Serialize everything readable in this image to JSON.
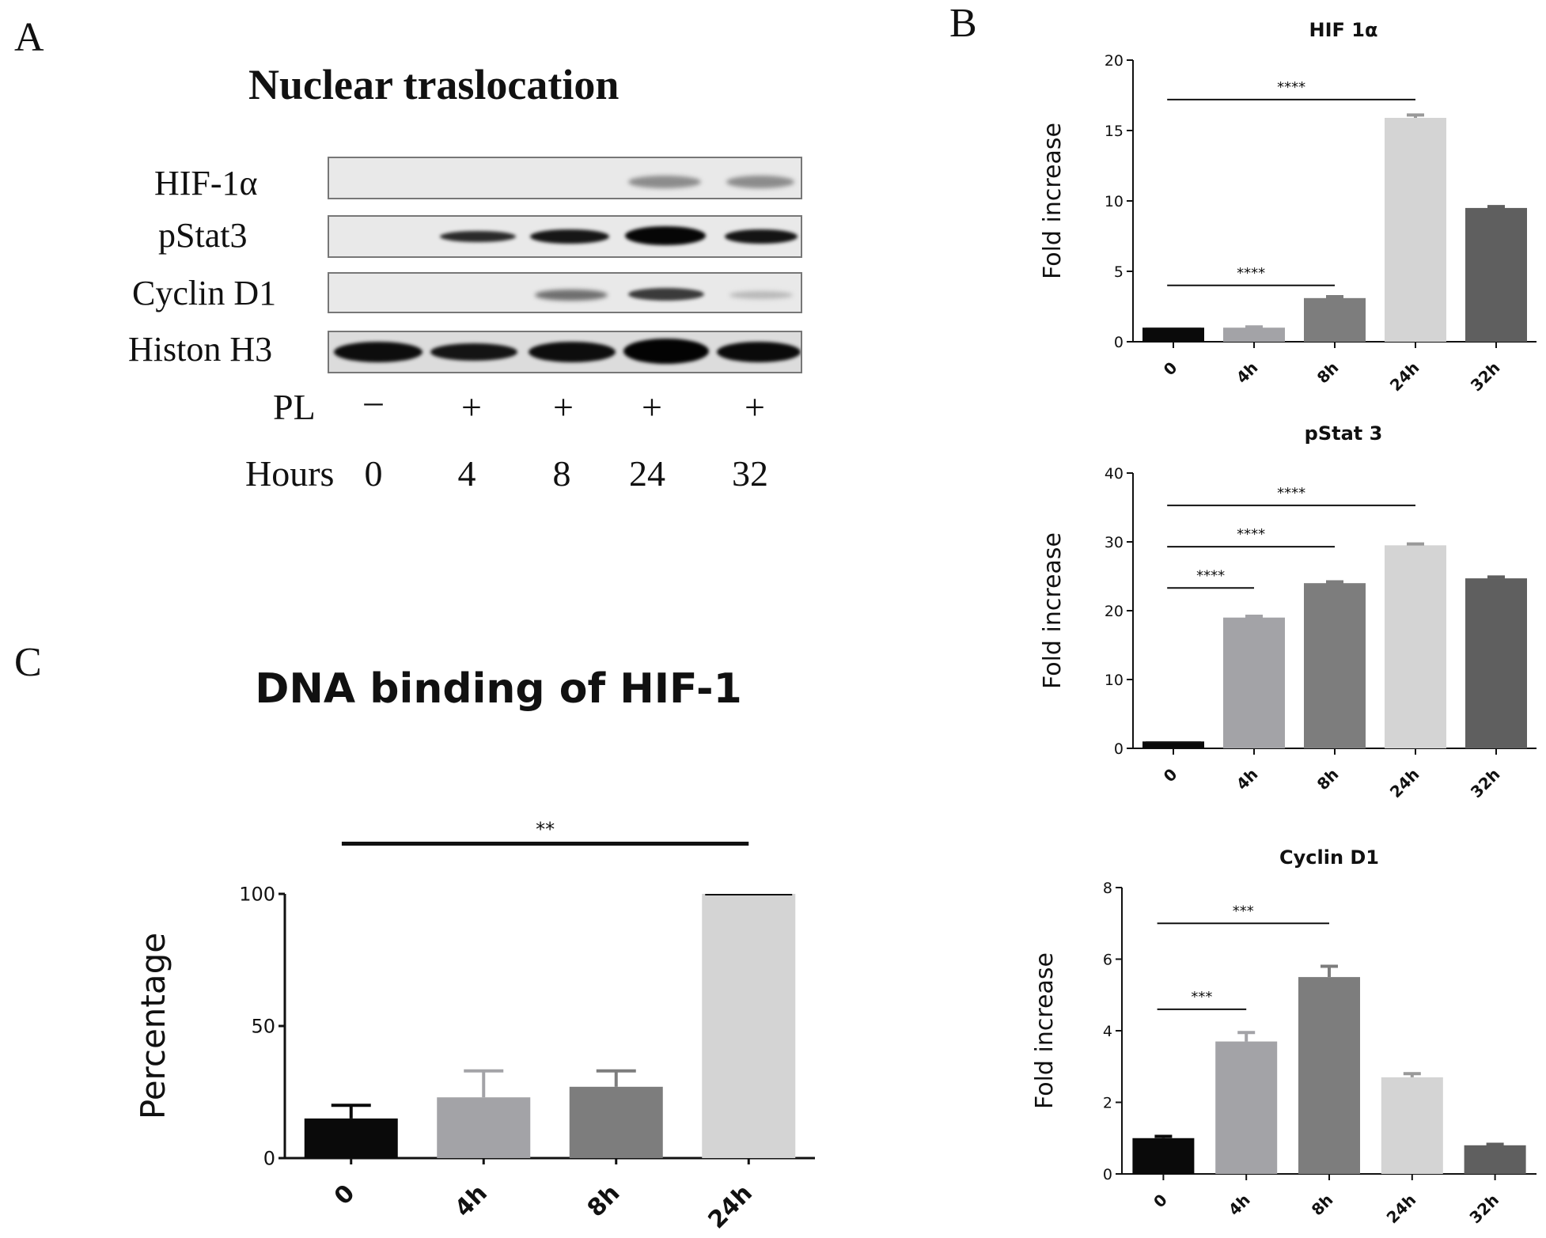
{
  "panel_a": {
    "letter": "A",
    "title": "Nuclear traslocation",
    "row_labels": [
      "HIF-1α",
      "pStat3",
      "Cyclin D1",
      "Histon H3"
    ],
    "pl_label": "PL",
    "pl_values": [
      "–",
      "+",
      "+",
      "+",
      "+"
    ],
    "hours_label": "Hours",
    "hours_values": [
      "0",
      "4",
      "8",
      "24",
      "32"
    ]
  },
  "panel_b": {
    "letter": "B"
  },
  "panel_c": {
    "letter": "C"
  },
  "colors": {
    "black": "#0a0a0a",
    "gray_light": "#a3a3a7",
    "gray_mid": "#7d7d7d",
    "very_light": "#d4d4d4",
    "dark": "#5f5f5f"
  },
  "chart_data": [
    {
      "id": "hif",
      "type": "bar",
      "title": "HIF 1α",
      "xlabel": "",
      "ylabel": "Fold increase",
      "categories": [
        "0",
        "4h",
        "8h",
        "24h",
        "32h"
      ],
      "values": [
        1.0,
        1.0,
        3.1,
        15.9,
        9.5
      ],
      "errors": [
        0.0,
        0.05,
        0.1,
        0.2,
        0.1
      ],
      "bar_colors": [
        "#0a0a0a",
        "#a3a3a7",
        "#7d7d7d",
        "#d4d4d4",
        "#5f5f5f"
      ],
      "ylim": [
        0,
        20
      ],
      "yticks": [
        0,
        5,
        10,
        15,
        20
      ],
      "significance": [
        {
          "from": 0,
          "to": 3,
          "y": 17.2,
          "label": "****"
        },
        {
          "from": 0,
          "to": 2,
          "y": 4.0,
          "label": "****"
        }
      ]
    },
    {
      "id": "pstat",
      "type": "bar",
      "title": "pStat 3",
      "xlabel": "",
      "ylabel": "Fold increase",
      "categories": [
        "0",
        "4h",
        "8h",
        "24h",
        "32h"
      ],
      "values": [
        1.0,
        19.0,
        24.0,
        29.5,
        24.7
      ],
      "errors": [
        0.0,
        0.2,
        0.2,
        0.2,
        0.2
      ],
      "bar_colors": [
        "#0a0a0a",
        "#a3a3a7",
        "#7d7d7d",
        "#d4d4d4",
        "#5f5f5f"
      ],
      "ylim": [
        0,
        40
      ],
      "yticks": [
        0,
        10,
        20,
        30,
        40
      ],
      "significance": [
        {
          "from": 0,
          "to": 3,
          "y": 35.3,
          "label": "****"
        },
        {
          "from": 0,
          "to": 2,
          "y": 29.3,
          "label": "****"
        },
        {
          "from": 0,
          "to": 1,
          "y": 23.3,
          "label": "****"
        }
      ]
    },
    {
      "id": "cyclin",
      "type": "bar",
      "title": "Cyclin D1",
      "xlabel": "",
      "ylabel": "Fold increase",
      "categories": [
        "0",
        "4h",
        "8h",
        "24h",
        "32h"
      ],
      "values": [
        1.0,
        3.7,
        5.5,
        2.7,
        0.8
      ],
      "errors": [
        0.05,
        0.25,
        0.3,
        0.1,
        0.03
      ],
      "bar_colors": [
        "#0a0a0a",
        "#a3a3a7",
        "#7d7d7d",
        "#d4d4d4",
        "#5f5f5f"
      ],
      "ylim": [
        0,
        8
      ],
      "yticks": [
        0,
        2,
        4,
        6,
        8
      ],
      "significance": [
        {
          "from": 0,
          "to": 2,
          "y": 7.0,
          "label": "***"
        },
        {
          "from": 0,
          "to": 1,
          "y": 4.6,
          "label": "***"
        }
      ]
    },
    {
      "id": "dna",
      "type": "bar",
      "title": "DNA binding of HIF-1",
      "xlabel": "",
      "ylabel": "Percentage",
      "categories": [
        "0",
        "4h",
        "8h",
        "24h"
      ],
      "values": [
        15,
        23,
        27,
        100
      ],
      "errors": [
        5,
        10,
        6,
        0
      ],
      "bar_colors": [
        "#0a0a0a",
        "#a3a3a7",
        "#7d7d7d",
        "#d4d4d4"
      ],
      "ylim": [
        0,
        100
      ],
      "yticks": [
        0,
        50,
        100
      ],
      "significance": [
        {
          "from": 0,
          "to": 3,
          "y": 119,
          "label": "**"
        }
      ]
    }
  ]
}
